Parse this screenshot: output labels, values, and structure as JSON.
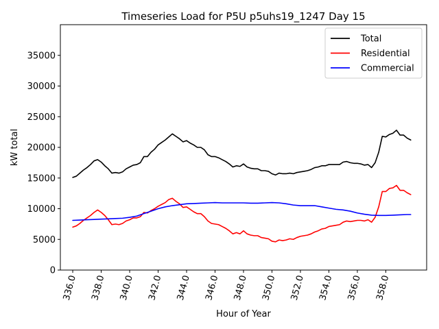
{
  "chart_data": {
    "type": "line",
    "title": "Timeseries Load for P5U p5uhs19_1247  Day 15",
    "xlabel": "Hour of Year",
    "ylabel": "kW total",
    "xlim": [
      335.13,
      360.87
    ],
    "ylim": [
      0,
      40000
    ],
    "xticks": [
      336.0,
      338.0,
      340.0,
      342.0,
      344.0,
      346.0,
      348.0,
      350.0,
      352.0,
      354.0,
      356.0,
      358.0
    ],
    "xtick_labels": [
      "336.0",
      "338.0",
      "340.0",
      "342.0",
      "344.0",
      "346.0",
      "348.0",
      "350.0",
      "352.0",
      "354.0",
      "356.0",
      "358.0"
    ],
    "yticks": [
      0,
      5000,
      10000,
      15000,
      20000,
      25000,
      30000,
      35000
    ],
    "ytick_labels": [
      "0",
      "5000",
      "10000",
      "15000",
      "20000",
      "25000",
      "30000",
      "35000"
    ],
    "legend_position": "top-right",
    "series": [
      {
        "name": "Total",
        "color": "#000000",
        "points": [
          [
            336.0,
            15100
          ],
          [
            336.25,
            15300
          ],
          [
            336.5,
            15800
          ],
          [
            336.75,
            16300
          ],
          [
            337.0,
            16700
          ],
          [
            337.25,
            17200
          ],
          [
            337.5,
            17800
          ],
          [
            337.75,
            18000
          ],
          [
            338.0,
            17600
          ],
          [
            338.25,
            17000
          ],
          [
            338.5,
            16500
          ],
          [
            338.75,
            15800
          ],
          [
            339.0,
            15900
          ],
          [
            339.25,
            15800
          ],
          [
            339.5,
            16000
          ],
          [
            339.75,
            16500
          ],
          [
            340.0,
            16800
          ],
          [
            340.25,
            17100
          ],
          [
            340.5,
            17200
          ],
          [
            340.75,
            17500
          ],
          [
            341.0,
            18500
          ],
          [
            341.25,
            18500
          ],
          [
            341.5,
            19200
          ],
          [
            341.75,
            19700
          ],
          [
            342.0,
            20400
          ],
          [
            342.25,
            20800
          ],
          [
            342.5,
            21200
          ],
          [
            342.75,
            21700
          ],
          [
            343.0,
            22200
          ],
          [
            343.25,
            21800
          ],
          [
            343.5,
            21400
          ],
          [
            343.75,
            20900
          ],
          [
            344.0,
            21100
          ],
          [
            344.25,
            20700
          ],
          [
            344.5,
            20400
          ],
          [
            344.75,
            20000
          ],
          [
            345.0,
            20000
          ],
          [
            345.25,
            19600
          ],
          [
            345.5,
            18800
          ],
          [
            345.75,
            18500
          ],
          [
            346.0,
            18500
          ],
          [
            346.25,
            18300
          ],
          [
            346.5,
            18000
          ],
          [
            346.75,
            17700
          ],
          [
            347.0,
            17300
          ],
          [
            347.25,
            16800
          ],
          [
            347.5,
            17000
          ],
          [
            347.75,
            16900
          ],
          [
            348.0,
            17300
          ],
          [
            348.25,
            16800
          ],
          [
            348.5,
            16600
          ],
          [
            348.75,
            16500
          ],
          [
            349.0,
            16500
          ],
          [
            349.25,
            16200
          ],
          [
            349.5,
            16200
          ],
          [
            349.75,
            16100
          ],
          [
            350.0,
            15700
          ],
          [
            350.25,
            15500
          ],
          [
            350.5,
            15800
          ],
          [
            350.75,
            15700
          ],
          [
            351.0,
            15700
          ],
          [
            351.25,
            15800
          ],
          [
            351.5,
            15700
          ],
          [
            351.75,
            15900
          ],
          [
            352.0,
            16000
          ],
          [
            352.25,
            16100
          ],
          [
            352.5,
            16200
          ],
          [
            352.75,
            16400
          ],
          [
            353.0,
            16700
          ],
          [
            353.25,
            16800
          ],
          [
            353.5,
            17000
          ],
          [
            353.75,
            17000
          ],
          [
            354.0,
            17200
          ],
          [
            354.25,
            17200
          ],
          [
            354.5,
            17200
          ],
          [
            354.75,
            17200
          ],
          [
            355.0,
            17600
          ],
          [
            355.25,
            17700
          ],
          [
            355.5,
            17500
          ],
          [
            355.75,
            17400
          ],
          [
            356.0,
            17400
          ],
          [
            356.25,
            17300
          ],
          [
            356.5,
            17100
          ],
          [
            356.75,
            17200
          ],
          [
            357.0,
            16700
          ],
          [
            357.25,
            17500
          ],
          [
            357.5,
            19200
          ],
          [
            357.75,
            21800
          ],
          [
            358.0,
            21700
          ],
          [
            358.25,
            22100
          ],
          [
            358.5,
            22300
          ],
          [
            358.75,
            22800
          ],
          [
            359.0,
            22000
          ],
          [
            359.25,
            22000
          ],
          [
            359.5,
            21500
          ],
          [
            359.75,
            21200
          ]
        ]
      },
      {
        "name": "Residential",
        "color": "#ff0000",
        "points": [
          [
            336.0,
            7000
          ],
          [
            336.25,
            7200
          ],
          [
            336.5,
            7600
          ],
          [
            336.75,
            8100
          ],
          [
            337.0,
            8500
          ],
          [
            337.25,
            8900
          ],
          [
            337.5,
            9400
          ],
          [
            337.75,
            9800
          ],
          [
            338.0,
            9400
          ],
          [
            338.25,
            8900
          ],
          [
            338.5,
            8200
          ],
          [
            338.75,
            7400
          ],
          [
            339.0,
            7500
          ],
          [
            339.25,
            7400
          ],
          [
            339.5,
            7600
          ],
          [
            339.75,
            8000
          ],
          [
            340.0,
            8200
          ],
          [
            340.25,
            8500
          ],
          [
            340.5,
            8500
          ],
          [
            340.75,
            8700
          ],
          [
            341.0,
            9400
          ],
          [
            341.25,
            9300
          ],
          [
            341.5,
            9700
          ],
          [
            341.75,
            10000
          ],
          [
            342.0,
            10400
          ],
          [
            342.25,
            10700
          ],
          [
            342.5,
            11000
          ],
          [
            342.75,
            11500
          ],
          [
            343.0,
            11700
          ],
          [
            343.25,
            11200
          ],
          [
            343.5,
            10800
          ],
          [
            343.75,
            10200
          ],
          [
            344.0,
            10300
          ],
          [
            344.25,
            9900
          ],
          [
            344.5,
            9500
          ],
          [
            344.75,
            9200
          ],
          [
            345.0,
            9200
          ],
          [
            345.25,
            8700
          ],
          [
            345.5,
            8000
          ],
          [
            345.75,
            7600
          ],
          [
            346.0,
            7500
          ],
          [
            346.25,
            7400
          ],
          [
            346.5,
            7100
          ],
          [
            346.75,
            6800
          ],
          [
            347.0,
            6400
          ],
          [
            347.25,
            5900
          ],
          [
            347.5,
            6100
          ],
          [
            347.75,
            5900
          ],
          [
            348.0,
            6400
          ],
          [
            348.25,
            5900
          ],
          [
            348.5,
            5700
          ],
          [
            348.75,
            5600
          ],
          [
            349.0,
            5600
          ],
          [
            349.25,
            5300
          ],
          [
            349.5,
            5200
          ],
          [
            349.75,
            5100
          ],
          [
            350.0,
            4700
          ],
          [
            350.25,
            4600
          ],
          [
            350.5,
            4900
          ],
          [
            350.75,
            4800
          ],
          [
            351.0,
            4900
          ],
          [
            351.25,
            5100
          ],
          [
            351.5,
            5000
          ],
          [
            351.75,
            5300
          ],
          [
            352.0,
            5500
          ],
          [
            352.25,
            5600
          ],
          [
            352.5,
            5700
          ],
          [
            352.75,
            5900
          ],
          [
            353.0,
            6200
          ],
          [
            353.25,
            6400
          ],
          [
            353.5,
            6700
          ],
          [
            353.75,
            6800
          ],
          [
            354.0,
            7100
          ],
          [
            354.25,
            7200
          ],
          [
            354.5,
            7300
          ],
          [
            354.75,
            7400
          ],
          [
            355.0,
            7800
          ],
          [
            355.25,
            8000
          ],
          [
            355.5,
            7900
          ],
          [
            355.75,
            8000
          ],
          [
            356.0,
            8100
          ],
          [
            356.25,
            8100
          ],
          [
            356.5,
            8000
          ],
          [
            356.75,
            8200
          ],
          [
            357.0,
            7800
          ],
          [
            357.25,
            8600
          ],
          [
            357.5,
            10300
          ],
          [
            357.75,
            12800
          ],
          [
            358.0,
            12800
          ],
          [
            358.25,
            13300
          ],
          [
            358.5,
            13400
          ],
          [
            358.75,
            13800
          ],
          [
            359.0,
            13000
          ],
          [
            359.25,
            13000
          ],
          [
            359.5,
            12600
          ],
          [
            359.75,
            12300
          ]
        ]
      },
      {
        "name": "Commercial",
        "color": "#0000ff",
        "points": [
          [
            336.0,
            8100
          ],
          [
            336.5,
            8150
          ],
          [
            337.0,
            8200
          ],
          [
            337.5,
            8250
          ],
          [
            338.0,
            8300
          ],
          [
            338.5,
            8350
          ],
          [
            339.0,
            8400
          ],
          [
            339.5,
            8450
          ],
          [
            340.0,
            8600
          ],
          [
            340.5,
            8800
          ],
          [
            341.0,
            9200
          ],
          [
            341.5,
            9600
          ],
          [
            342.0,
            10000
          ],
          [
            342.5,
            10300
          ],
          [
            343.0,
            10500
          ],
          [
            343.5,
            10650
          ],
          [
            344.0,
            10800
          ],
          [
            344.5,
            10850
          ],
          [
            345.0,
            10900
          ],
          [
            345.5,
            10950
          ],
          [
            346.0,
            11000
          ],
          [
            346.5,
            10950
          ],
          [
            347.0,
            10950
          ],
          [
            347.5,
            10950
          ],
          [
            348.0,
            10950
          ],
          [
            348.5,
            10900
          ],
          [
            349.0,
            10900
          ],
          [
            349.5,
            10950
          ],
          [
            350.0,
            11000
          ],
          [
            350.5,
            10950
          ],
          [
            351.0,
            10800
          ],
          [
            351.5,
            10600
          ],
          [
            352.0,
            10500
          ],
          [
            352.5,
            10500
          ],
          [
            353.0,
            10500
          ],
          [
            353.5,
            10300
          ],
          [
            354.0,
            10100
          ],
          [
            354.5,
            9900
          ],
          [
            355.0,
            9800
          ],
          [
            355.5,
            9600
          ],
          [
            356.0,
            9300
          ],
          [
            356.5,
            9100
          ],
          [
            357.0,
            8950
          ],
          [
            357.5,
            8900
          ],
          [
            358.0,
            8900
          ],
          [
            358.5,
            8950
          ],
          [
            359.0,
            9000
          ],
          [
            359.5,
            9050
          ],
          [
            359.75,
            9050
          ]
        ]
      }
    ]
  }
}
